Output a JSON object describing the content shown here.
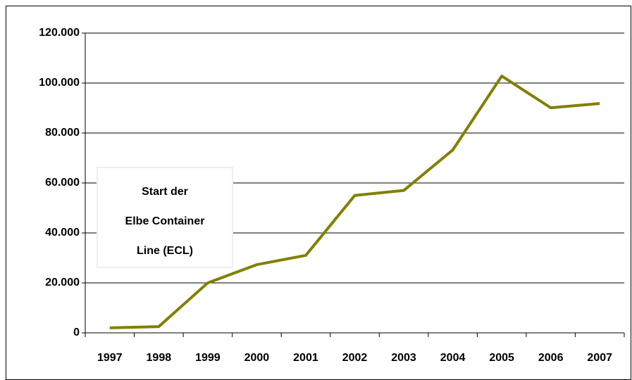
{
  "chart_data": {
    "type": "line",
    "annotation": [
      "Start der",
      "Elbe Container",
      "Line (ECL)"
    ],
    "categories": [
      "1997",
      "1998",
      "1999",
      "2000",
      "2001",
      "2002",
      "2003",
      "2004",
      "2005",
      "2006",
      "2007"
    ],
    "series": [
      {
        "color": "#808000",
        "values": [
          2000,
          2500,
          20000,
          27300,
          31000,
          55000,
          57000,
          73200,
          102800,
          90100,
          91800
        ]
      }
    ],
    "ylim": [
      0,
      120000
    ],
    "yticks": [
      0,
      {
        "value": 20000,
        "label": "20.000"
      },
      {
        "value": 40000,
        "label": "40.000"
      },
      {
        "value": 60000,
        "label": "60.000"
      },
      {
        "value": 80000,
        "label": "80.000"
      },
      {
        "value": 100000,
        "label": "100.000"
      },
      {
        "value": 120000,
        "label": "120.000"
      }
    ],
    "grid": true
  }
}
